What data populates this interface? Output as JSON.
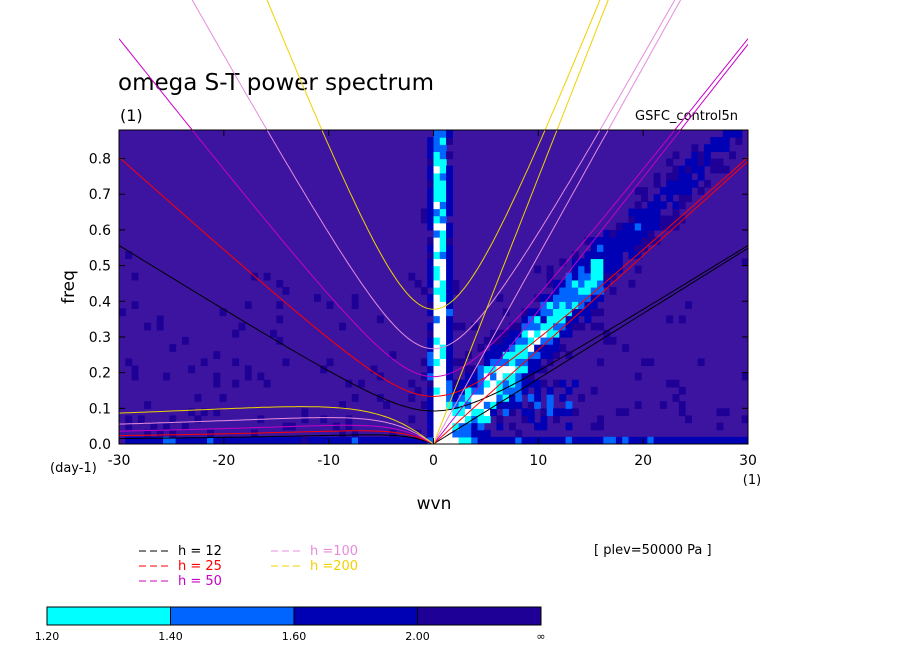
{
  "chart_data": {
    "type": "heatmap",
    "title": "omega S-T power spectrum",
    "units_label": "(1)",
    "dataset": "GSFC_control5n",
    "xlabel": "wvn",
    "ylabel": "freq",
    "x_units_right": "(1)",
    "y_units_bottom": "(day-1)",
    "xlim": [
      -30,
      30
    ],
    "ylim": [
      0,
      0.88
    ],
    "x_ticks": [
      "-30",
      "-20",
      "-10",
      "0",
      "10",
      "20",
      "30"
    ],
    "x_tick_values": [
      -30,
      -20,
      -10,
      0,
      10,
      20,
      30
    ],
    "y_ticks": [
      "0.0",
      "0.1",
      "0.2",
      "0.3",
      "0.4",
      "0.5",
      "0.6",
      "0.7",
      "0.8"
    ],
    "y_tick_values": [
      0,
      0.1,
      0.2,
      0.3,
      0.4,
      0.5,
      0.6,
      0.7,
      0.8
    ],
    "plev_label": "[ plev=50000 Pa ]",
    "colorbar": {
      "labels": [
        "1.20",
        "1.40",
        "1.60",
        "2.00",
        "∞"
      ],
      "colors": [
        "#00ffff",
        "#0064ff",
        "#0000b4",
        "#1e0096"
      ]
    },
    "background_color": "#3c14a0",
    "legend": [
      {
        "text": "h = 12",
        "color": "#000000"
      },
      {
        "text": "h = 25",
        "color": "#ff0000"
      },
      {
        "text": "h = 50",
        "color": "#c800c8"
      },
      {
        "text": "h =100",
        "color": "#e68cdc"
      },
      {
        "text": "h =200",
        "color": "#f0d200"
      }
    ],
    "dispersion_curves": [
      {
        "h": 12,
        "color": "#000000",
        "kelvin_slope": 0.01829
      },
      {
        "h": 25,
        "color": "#ff0000",
        "kelvin_slope": 0.02641
      },
      {
        "h": 50,
        "color": "#c800c8",
        "kelvin_slope": 0.03734
      },
      {
        "h": 100,
        "color": "#e68cdc",
        "kelvin_slope": 0.05281
      },
      {
        "h": 200,
        "color": "#f0d200",
        "kelvin_slope": 0.07469
      }
    ],
    "high_power_regions": [
      {
        "wvn_center": 0,
        "note": "vertical band around wvn 0"
      },
      {
        "wvn_center": 8,
        "note": "eastward band along Kelvin-wave lines"
      }
    ]
  }
}
